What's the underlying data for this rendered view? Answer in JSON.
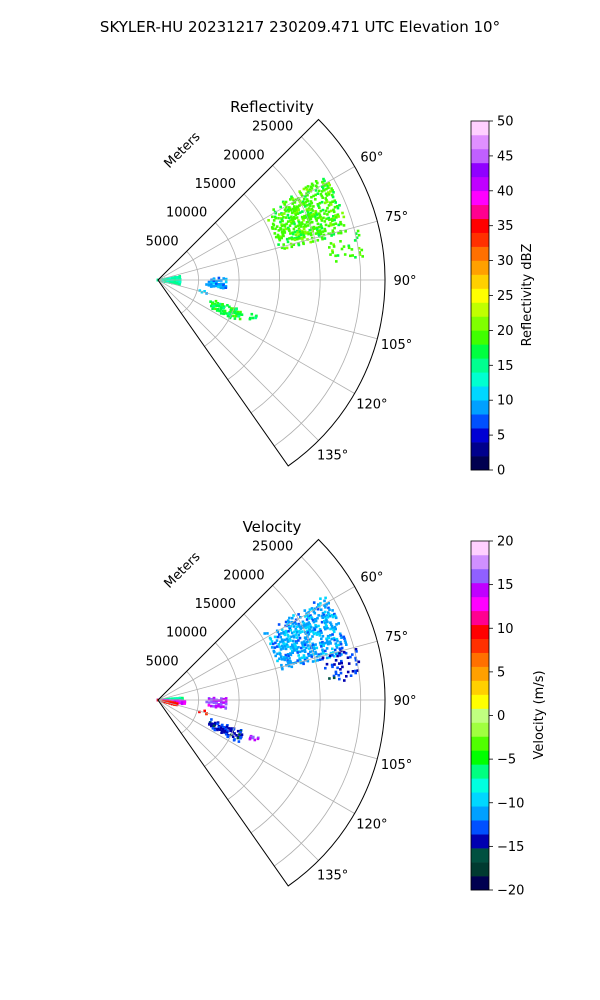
{
  "figure": {
    "suptitle": "SKYLER-HU  20231217  230209.471 UTC Elevation 10°"
  },
  "chart_data": [
    {
      "type": "polar-sector",
      "title": "Reflectivity",
      "range_label": "Meters",
      "r_max": 28000,
      "r_ticks": [
        5000,
        10000,
        15000,
        20000,
        25000
      ],
      "r_tick_labels": [
        "5000",
        "10000",
        "15000",
        "20000",
        "25000"
      ],
      "theta_min": 45,
      "theta_max": 145,
      "theta_gridlines": [
        45,
        60,
        75,
        90,
        105,
        120,
        135
      ],
      "theta_tick_labels": [
        "60°",
        "75°",
        "90°",
        "105°",
        "120°",
        "135°"
      ],
      "theta_tick_values": [
        60,
        75,
        90,
        105,
        120,
        135
      ],
      "grid": true,
      "colorbar": {
        "label": "Reflectivity dBZ",
        "vmin": 0,
        "vmax": 50,
        "ticks": [
          0,
          5,
          10,
          15,
          20,
          25,
          30,
          35,
          40,
          45,
          50
        ],
        "tick_labels": [
          "0",
          "5",
          "10",
          "15",
          "20",
          "25",
          "30",
          "35",
          "40",
          "45",
          "50"
        ],
        "colors": [
          "#000050",
          "#00008c",
          "#0000d4",
          "#0050ff",
          "#00a0ff",
          "#00d7ff",
          "#00ffd0",
          "#00ff90",
          "#00ff40",
          "#40ff00",
          "#80ff00",
          "#c0ff00",
          "#ffff00",
          "#ffd000",
          "#ffa000",
          "#ff7000",
          "#ff3000",
          "#ff0000",
          "#ff0090",
          "#ff00ff",
          "#c000ff",
          "#9000ff",
          "#c060ff",
          "#e090ff",
          "#ffd0ff"
        ]
      },
      "echo_regions": [
        {
          "r": [
            15500,
            24500
          ],
          "theta": [
            58,
            76
          ],
          "value": 19,
          "density": 0.55
        },
        {
          "r": [
            21500,
            25500
          ],
          "theta": [
            75,
            84
          ],
          "value": 19,
          "density": 0.25
        },
        {
          "r": [
            0,
            3000
          ],
          "theta": [
            80,
            102
          ],
          "value": 14,
          "density": 0.55
        },
        {
          "r": [
            6000,
            8500
          ],
          "theta": [
            88,
            97
          ],
          "value": 9,
          "density": 0.4
        },
        {
          "r": [
            7000,
            11500
          ],
          "theta": [
            110,
            118
          ],
          "value": 17,
          "density": 0.5
        },
        {
          "r": [
            12000,
            13500
          ],
          "theta": [
            110,
            113
          ],
          "value": 17,
          "density": 0.4
        },
        {
          "r": [
            5000,
            6500
          ],
          "theta": [
            103,
            106
          ],
          "value": 10,
          "density": 0.3
        }
      ]
    },
    {
      "type": "polar-sector",
      "title": "Velocity",
      "range_label": "Meters",
      "r_max": 28000,
      "r_ticks": [
        5000,
        10000,
        15000,
        20000,
        25000
      ],
      "r_tick_labels": [
        "5000",
        "10000",
        "15000",
        "20000",
        "25000"
      ],
      "theta_min": 45,
      "theta_max": 145,
      "theta_gridlines": [
        45,
        60,
        75,
        90,
        105,
        120,
        135
      ],
      "theta_tick_labels": [
        "60°",
        "75°",
        "90°",
        "105°",
        "120°",
        "135°"
      ],
      "theta_tick_values": [
        60,
        75,
        90,
        105,
        120,
        135
      ],
      "grid": true,
      "colorbar": {
        "label": "Velocity (m/s)",
        "vmin": -20,
        "vmax": 20,
        "ticks": [
          -20,
          -15,
          -10,
          -5,
          0,
          5,
          10,
          15,
          20
        ],
        "tick_labels": [
          "−20",
          "−15",
          "−10",
          "−5",
          "0",
          "5",
          "10",
          "15",
          "20"
        ],
        "colors": [
          "#000050",
          "#003a30",
          "#005040",
          "#0000b0",
          "#0050ff",
          "#00a0ff",
          "#00d7ff",
          "#00ffe0",
          "#00ff80",
          "#00ff00",
          "#50ff00",
          "#a0ff40",
          "#c0ff80",
          "#ffff00",
          "#ffd000",
          "#ffa000",
          "#ff7000",
          "#ff3000",
          "#ff0000",
          "#ff0090",
          "#ff00ff",
          "#c000ff",
          "#9060ff",
          "#d090ff",
          "#ffd0ff"
        ]
      },
      "echo_regions": [
        {
          "r": [
            15500,
            24500
          ],
          "theta": [
            58,
            76
          ],
          "value": -11,
          "density": 0.55
        },
        {
          "r": [
            21000,
            25500
          ],
          "theta": [
            75,
            84
          ],
          "value": -14,
          "density": 0.25
        },
        {
          "r": [
            0,
            3200
          ],
          "theta": [
            84,
            91
          ],
          "value": -7,
          "density": 0.6
        },
        {
          "r": [
            0,
            3500
          ],
          "theta": [
            91,
            99
          ],
          "value": 14,
          "density": 0.7
        },
        {
          "r": [
            0,
            2500
          ],
          "theta": [
            99,
            106
          ],
          "value": 9,
          "density": 0.7
        },
        {
          "r": [
            6000,
            8500
          ],
          "theta": [
            88,
            97
          ],
          "value": 15,
          "density": 0.4
        },
        {
          "r": [
            7000,
            11500
          ],
          "theta": [
            110,
            118
          ],
          "value": -14,
          "density": 0.5
        },
        {
          "r": [
            12000,
            13500
          ],
          "theta": [
            110,
            113
          ],
          "value": 15,
          "density": 0.4
        },
        {
          "r": [
            5000,
            6500
          ],
          "theta": [
            103,
            106
          ],
          "value": 9,
          "density": 0.3
        }
      ]
    }
  ]
}
